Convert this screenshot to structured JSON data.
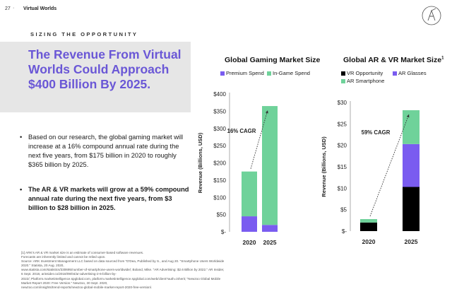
{
  "page": {
    "number": "27",
    "separator": "·",
    "section": "Virtual Worlds",
    "kicker": "SIZING THE OPPORTUNITY",
    "headline": "The Revenue From Virtual Worlds Could Approach $400 Billion By 2025.",
    "bullets": [
      {
        "marker": "•",
        "text": "Based on our research, the global gaming market will increase at a 16% compound annual rate during the next five years, from $175 billion in 2020 to roughly $365 billion by 2025."
      },
      {
        "marker": "•",
        "text": "The AR & VR markets will grow at a 59% compound annual rate during the next five years, from $3 billion to $28 billion in 2025."
      }
    ],
    "footnotes": [
      "[1] ARK's AR & VR market size is an estimate of consumer-based software revenues.",
      "Forecasts are inherently limited and cannot be relied upon.",
      "Source: ARK Investment Management LLC based on data sourced from \"D'Dea, Published by S., and Aug 20. \"Smartphone Users Worldwide 2020.\" Statista, 20 Aug. 2020,",
      "www.statista.com/statistics/330695/number-of-smartphone-users-worldwide/; Boland, Mike. \"AR Advertising: $2.6 Billion by 2022.\" AR Insider, 6 Sept. 2018, arinsider.co/2018/09/04/ar-advertising-2-6-billion-by-",
      "2022/; Platform.marketintelligence.spglobal.com, platform.marketintelligence.spglobal.com/web/client?auth=inherit; \"Newzoo Global Mobile Market Report 2020: Free Version.\" Newzoo, 30 Sept. 2020,",
      "newzoo.com/insights/trend-reports/newzoo-global-mobile-market-report-2020-free-version/."
    ],
    "colors": {
      "accent": "#6a57d6",
      "green": "#6fd29a",
      "purple": "#7a5cf0",
      "black": "#000000",
      "panel": "#e6e6e6"
    }
  },
  "chart_data": [
    {
      "type": "bar",
      "stacked": true,
      "title": "Global Gaming Market Size",
      "categories": [
        "2020",
        "2025"
      ],
      "series": [
        {
          "name": "Premium Spend",
          "color": "#7a5cf0",
          "values": [
            45,
            20
          ]
        },
        {
          "name": "In-Game Spend",
          "color": "#6fd29a",
          "values": [
            130,
            345
          ]
        }
      ],
      "totals": [
        175,
        365
      ],
      "xlabel": "",
      "ylabel": "Revenue (Billions, USD)",
      "ylim": [
        0,
        400
      ],
      "yticks": [
        0,
        50,
        100,
        150,
        200,
        250,
        300,
        350,
        400
      ],
      "ytick_labels": [
        "$-",
        "$50",
        "$100",
        "$150",
        "$200",
        "$250",
        "$300",
        "$350",
        "$400"
      ],
      "annotation": "16% CAGR",
      "legend": "top"
    },
    {
      "type": "bar",
      "stacked": true,
      "title": "Global AR & VR Market Size",
      "title_superscript": "1",
      "categories": [
        "2020",
        "2025"
      ],
      "series": [
        {
          "name": "VR Opportunity",
          "color": "#000000",
          "values": [
            2,
            10.3
          ]
        },
        {
          "name": "AR Glasses",
          "color": "#7a5cf0",
          "values": [
            0,
            10
          ]
        },
        {
          "name": "AR Smartphone",
          "color": "#6fd29a",
          "values": [
            0.8,
            7.9
          ]
        }
      ],
      "totals": [
        3,
        28
      ],
      "xlabel": "",
      "ylabel": "Revenue (Billions, USD)",
      "ylim": [
        0,
        30
      ],
      "yticks": [
        0,
        5,
        10,
        15,
        20,
        25,
        30
      ],
      "ytick_labels": [
        "$-",
        "$5",
        "$10",
        "$15",
        "$20",
        "$25",
        "$30"
      ],
      "annotation": "59% CAGR",
      "legend": "top"
    }
  ]
}
